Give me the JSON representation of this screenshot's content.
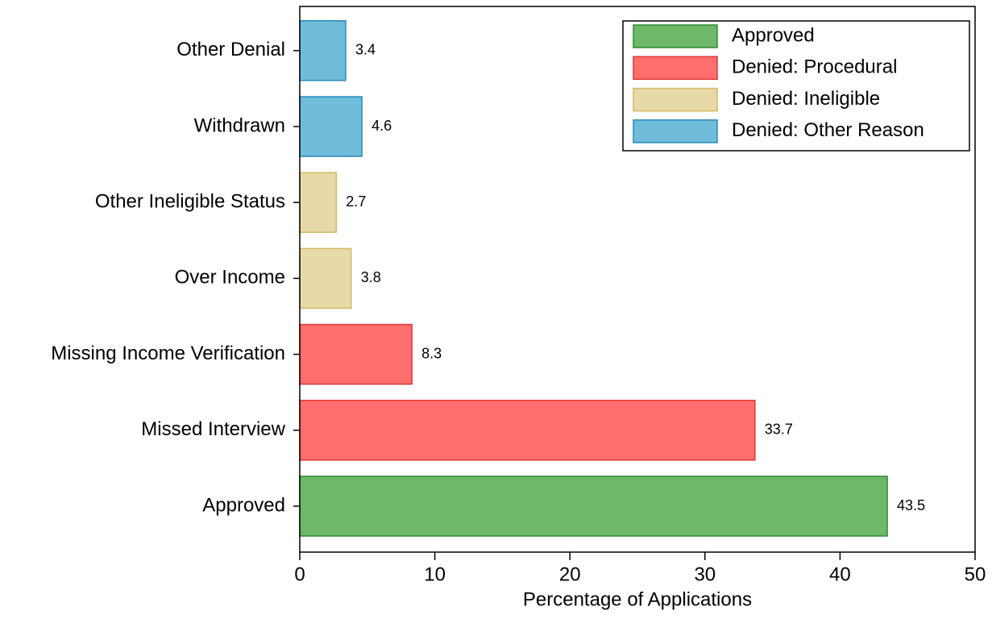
{
  "chart_data": {
    "type": "bar",
    "orientation": "horizontal",
    "x_label": "Percentage of Applications",
    "categories": [
      "Approved",
      "Missed Interview",
      "Missing Income Verification",
      "Over Income",
      "Other Ineligible Status",
      "Withdrawn",
      "Other Denial"
    ],
    "series": [
      {
        "name": "Approved",
        "color": "#6db86b",
        "edge": "#2e8b2e",
        "values": [
          43.5,
          null,
          null,
          null,
          null,
          null,
          null
        ]
      },
      {
        "name": "Denied: Procedural",
        "color": "#ff6e6e",
        "edge": "#e03535",
        "values": [
          null,
          33.7,
          8.3,
          null,
          null,
          null,
          null
        ]
      },
      {
        "name": "Denied: Ineligible",
        "color": "#e8d9a8",
        "edge": "#d4b860",
        "values": [
          null,
          null,
          null,
          3.8,
          2.7,
          null,
          null
        ]
      },
      {
        "name": "Denied: Other Reason",
        "color": "#6fbcdb",
        "edge": "#2a8ab8",
        "values": [
          null,
          null,
          null,
          null,
          null,
          4.6,
          3.4
        ]
      }
    ],
    "xlim": [
      0,
      50
    ],
    "xticks": [
      0,
      10,
      20,
      30,
      40,
      50
    ],
    "grid": false,
    "legend": "upper right"
  }
}
